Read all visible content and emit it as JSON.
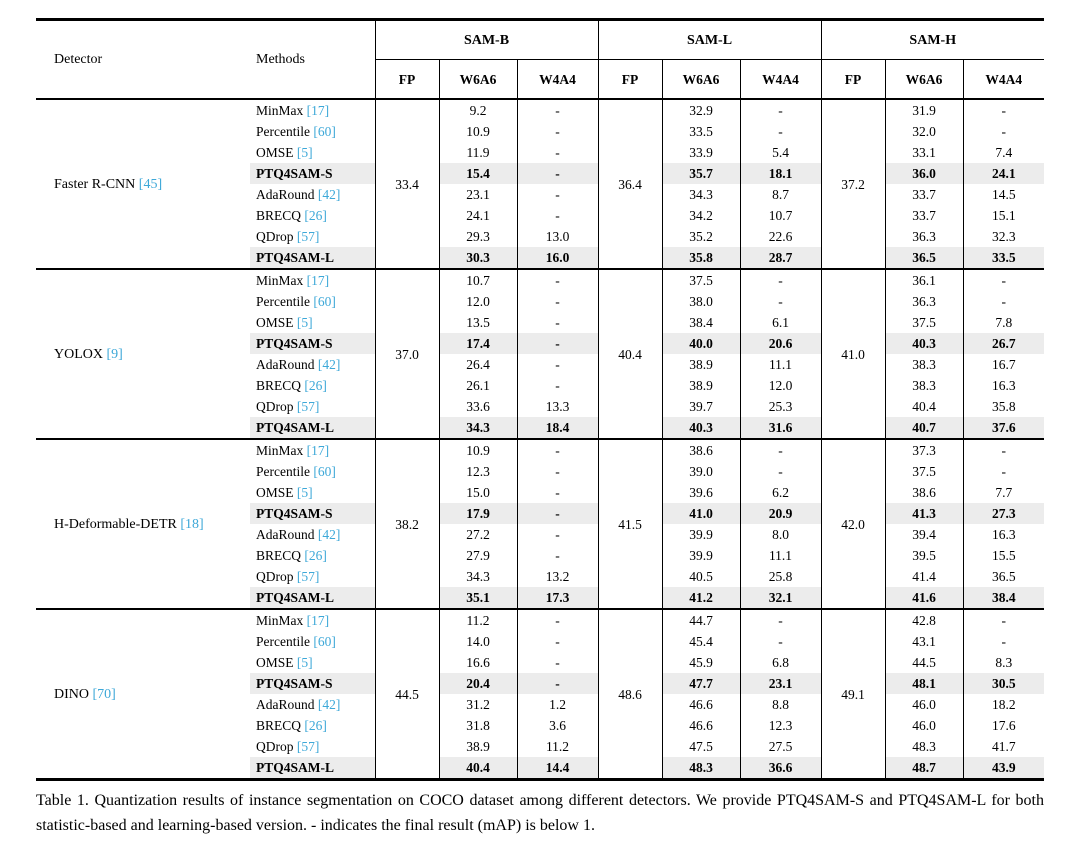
{
  "colors": {
    "cite": "#3da8d8",
    "highlight_row": "#ececec"
  },
  "table": {
    "header": {
      "detector": "Detector",
      "methods": "Methods",
      "groups": [
        "SAM-B",
        "SAM-L",
        "SAM-H"
      ],
      "subcols": [
        "FP",
        "W6A6",
        "W4A4"
      ]
    },
    "body": [
      {
        "detector": "Faster R-CNN",
        "cite": "45",
        "fp": [
          "33.4",
          "36.4",
          "37.2"
        ],
        "rows": [
          {
            "method": "MinMax",
            "cite": "17",
            "bold": false,
            "values": [
              "9.2",
              "-",
              "32.9",
              "-",
              "31.9",
              "-"
            ]
          },
          {
            "method": "Percentile",
            "cite": "60",
            "bold": false,
            "values": [
              "10.9",
              "-",
              "33.5",
              "-",
              "32.0",
              "-"
            ]
          },
          {
            "method": "OMSE",
            "cite": "5",
            "bold": false,
            "values": [
              "11.9",
              "-",
              "33.9",
              "5.4",
              "33.1",
              "7.4"
            ]
          },
          {
            "method": "PTQ4SAM-S",
            "cite": "",
            "bold": true,
            "values": [
              "15.4",
              "-",
              "35.7",
              "18.1",
              "36.0",
              "24.1"
            ]
          },
          {
            "method": "AdaRound",
            "cite": "42",
            "bold": false,
            "values": [
              "23.1",
              "-",
              "34.3",
              "8.7",
              "33.7",
              "14.5"
            ]
          },
          {
            "method": "BRECQ",
            "cite": "26",
            "bold": false,
            "values": [
              "24.1",
              "-",
              "34.2",
              "10.7",
              "33.7",
              "15.1"
            ]
          },
          {
            "method": "QDrop",
            "cite": "57",
            "bold": false,
            "values": [
              "29.3",
              "13.0",
              "35.2",
              "22.6",
              "36.3",
              "32.3"
            ]
          },
          {
            "method": "PTQ4SAM-L",
            "cite": "",
            "bold": true,
            "values": [
              "30.3",
              "16.0",
              "35.8",
              "28.7",
              "36.5",
              "33.5"
            ]
          }
        ]
      },
      {
        "detector": "YOLOX",
        "cite": "9",
        "fp": [
          "37.0",
          "40.4",
          "41.0"
        ],
        "rows": [
          {
            "method": "MinMax",
            "cite": "17",
            "bold": false,
            "values": [
              "10.7",
              "-",
              "37.5",
              "-",
              "36.1",
              "-"
            ]
          },
          {
            "method": "Percentile",
            "cite": "60",
            "bold": false,
            "values": [
              "12.0",
              "-",
              "38.0",
              "-",
              "36.3",
              "-"
            ]
          },
          {
            "method": "OMSE",
            "cite": "5",
            "bold": false,
            "values": [
              "13.5",
              "-",
              "38.4",
              "6.1",
              "37.5",
              "7.8"
            ]
          },
          {
            "method": "PTQ4SAM-S",
            "cite": "",
            "bold": true,
            "values": [
              "17.4",
              "-",
              "40.0",
              "20.6",
              "40.3",
              "26.7"
            ]
          },
          {
            "method": "AdaRound",
            "cite": "42",
            "bold": false,
            "values": [
              "26.4",
              "-",
              "38.9",
              "11.1",
              "38.3",
              "16.7"
            ]
          },
          {
            "method": "BRECQ",
            "cite": "26",
            "bold": false,
            "values": [
              "26.1",
              "-",
              "38.9",
              "12.0",
              "38.3",
              "16.3"
            ]
          },
          {
            "method": "QDrop",
            "cite": "57",
            "bold": false,
            "values": [
              "33.6",
              "13.3",
              "39.7",
              "25.3",
              "40.4",
              "35.8"
            ]
          },
          {
            "method": "PTQ4SAM-L",
            "cite": "",
            "bold": true,
            "values": [
              "34.3",
              "18.4",
              "40.3",
              "31.6",
              "40.7",
              "37.6"
            ]
          }
        ]
      },
      {
        "detector": "H-Deformable-DETR",
        "cite": "18",
        "fp": [
          "38.2",
          "41.5",
          "42.0"
        ],
        "rows": [
          {
            "method": "MinMax",
            "cite": "17",
            "bold": false,
            "values": [
              "10.9",
              "-",
              "38.6",
              "-",
              "37.3",
              "-"
            ]
          },
          {
            "method": "Percentile",
            "cite": "60",
            "bold": false,
            "values": [
              "12.3",
              "-",
              "39.0",
              "-",
              "37.5",
              "-"
            ]
          },
          {
            "method": "OMSE",
            "cite": "5",
            "bold": false,
            "values": [
              "15.0",
              "-",
              "39.6",
              "6.2",
              "38.6",
              "7.7"
            ]
          },
          {
            "method": "PTQ4SAM-S",
            "cite": "",
            "bold": true,
            "values": [
              "17.9",
              "-",
              "41.0",
              "20.9",
              "41.3",
              "27.3"
            ]
          },
          {
            "method": "AdaRound",
            "cite": "42",
            "bold": false,
            "values": [
              "27.2",
              "-",
              "39.9",
              "8.0",
              "39.4",
              "16.3"
            ]
          },
          {
            "method": "BRECQ",
            "cite": "26",
            "bold": false,
            "values": [
              "27.9",
              "-",
              "39.9",
              "11.1",
              "39.5",
              "15.5"
            ]
          },
          {
            "method": "QDrop",
            "cite": "57",
            "bold": false,
            "values": [
              "34.3",
              "13.2",
              "40.5",
              "25.8",
              "41.4",
              "36.5"
            ]
          },
          {
            "method": "PTQ4SAM-L",
            "cite": "",
            "bold": true,
            "values": [
              "35.1",
              "17.3",
              "41.2",
              "32.1",
              "41.6",
              "38.4"
            ]
          }
        ]
      },
      {
        "detector": "DINO",
        "cite": "70",
        "fp": [
          "44.5",
          "48.6",
          "49.1"
        ],
        "rows": [
          {
            "method": "MinMax",
            "cite": "17",
            "bold": false,
            "values": [
              "11.2",
              "-",
              "44.7",
              "-",
              "42.8",
              "-"
            ]
          },
          {
            "method": "Percentile",
            "cite": "60",
            "bold": false,
            "values": [
              "14.0",
              "-",
              "45.4",
              "-",
              "43.1",
              "-"
            ]
          },
          {
            "method": "OMSE",
            "cite": "5",
            "bold": false,
            "values": [
              "16.6",
              "-",
              "45.9",
              "6.8",
              "44.5",
              "8.3"
            ]
          },
          {
            "method": "PTQ4SAM-S",
            "cite": "",
            "bold": true,
            "values": [
              "20.4",
              "-",
              "47.7",
              "23.1",
              "48.1",
              "30.5"
            ]
          },
          {
            "method": "AdaRound",
            "cite": "42",
            "bold": false,
            "values": [
              "31.2",
              "1.2",
              "46.6",
              "8.8",
              "46.0",
              "18.2"
            ]
          },
          {
            "method": "BRECQ",
            "cite": "26",
            "bold": false,
            "values": [
              "31.8",
              "3.6",
              "46.6",
              "12.3",
              "46.0",
              "17.6"
            ]
          },
          {
            "method": "QDrop",
            "cite": "57",
            "bold": false,
            "values": [
              "38.9",
              "11.2",
              "47.5",
              "27.5",
              "48.3",
              "41.7"
            ]
          },
          {
            "method": "PTQ4SAM-L",
            "cite": "",
            "bold": true,
            "values": [
              "40.4",
              "14.4",
              "48.3",
              "36.6",
              "48.7",
              "43.9"
            ]
          }
        ]
      }
    ]
  },
  "caption": "Table 1.  Quantization results of instance segmentation on COCO dataset among different detectors.  We provide PTQ4SAM-S and PTQ4SAM-L for both statistic-based and learning-based version. - indicates the final result (mAP) is below 1."
}
